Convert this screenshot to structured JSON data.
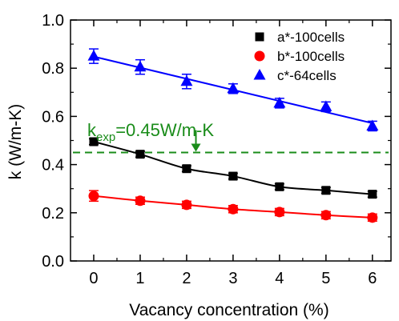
{
  "chart_data": {
    "type": "scatter",
    "xlabel": "Vacancy concentration (%)",
    "ylabel": "k (W/m-K)",
    "xlim": [
      -0.5,
      6.4
    ],
    "ylim": [
      0.0,
      1.0
    ],
    "xticks": [
      0,
      1,
      2,
      3,
      4,
      5,
      6
    ],
    "xtick_labels": [
      "0",
      "1",
      "2",
      "3",
      "4",
      "5",
      "6"
    ],
    "yticks": [
      0.0,
      0.2,
      0.4,
      0.6,
      0.8,
      1.0
    ],
    "ytick_labels": [
      "0.0",
      "0.2",
      "0.4",
      "0.6",
      "0.8",
      "1.0"
    ],
    "legend_position": "top-right",
    "series": [
      {
        "name": "a*-100cells",
        "marker": "square",
        "color": "#000000",
        "x": [
          0,
          1,
          2,
          3,
          4,
          5,
          6
        ],
        "y": [
          0.495,
          0.443,
          0.383,
          0.352,
          0.308,
          0.293,
          0.277
        ],
        "error": [
          0.012,
          0.012,
          0.012,
          0.012,
          0.012,
          0.012,
          0.012
        ],
        "fit": "curve"
      },
      {
        "name": "b*-100cells",
        "marker": "circle",
        "color": "#ff0000",
        "x": [
          0,
          1,
          2,
          3,
          4,
          5,
          6
        ],
        "y": [
          0.27,
          0.25,
          0.233,
          0.215,
          0.203,
          0.19,
          0.18
        ],
        "error": [
          0.022,
          0.015,
          0.015,
          0.015,
          0.015,
          0.015,
          0.015
        ],
        "fit": "curve"
      },
      {
        "name": "c*-64cells",
        "marker": "triangle",
        "color": "#0000ff",
        "x": [
          0,
          1,
          2,
          3,
          4,
          5,
          6
        ],
        "y": [
          0.85,
          0.805,
          0.745,
          0.715,
          0.655,
          0.64,
          0.56
        ],
        "error": [
          0.03,
          0.03,
          0.03,
          0.02,
          0.02,
          0.02,
          0.02
        ],
        "fit": "line"
      }
    ],
    "reference_line": {
      "y": 0.45,
      "color": "#1a8c1a",
      "style": "dashed",
      "label_main": "k",
      "label_sub": "exp",
      "label_rest": "=0.45W/m-K",
      "arrow_x": 2.2
    }
  }
}
